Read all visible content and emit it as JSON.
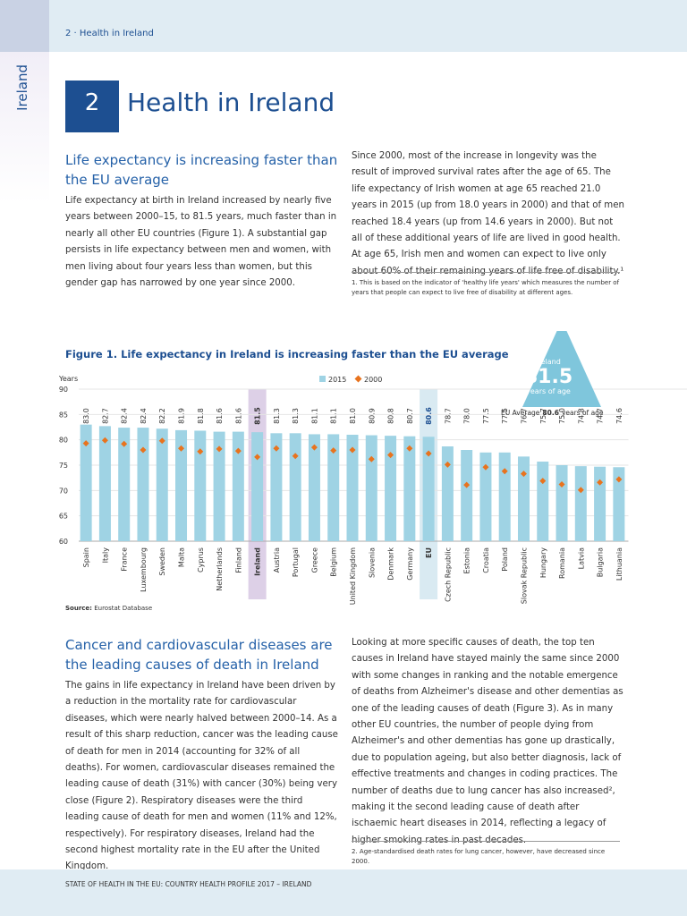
{
  "header": {
    "section": "2 · Health in Ireland"
  },
  "side_tab": "Ireland",
  "chapter": {
    "number": "2",
    "title": "Health in Ireland"
  },
  "section1": {
    "heading": "Life expectancy is increasing faster than the EU average",
    "left_paragraph": "Life expectancy at birth in Ireland increased by nearly five years between 2000–15, to 81.5 years, much faster than in nearly all other EU countries (Figure 1). A substantial gap persists in life expectancy between men and women, with men living about four years less than women, but this gender gap has narrowed by one year since 2000.",
    "right_paragraph": "Since 2000, most of the increase in longevity was the result of improved survival rates after the age of 65. The life expectancy of Irish women at age 65 reached 21.0 years in 2015 (up from 18.0 years in 2000) and that of men reached 18.4 years (up from 14.6 years in 2000). But not all of these additional years of life are lived in good health. At age 65, Irish men and women can expect to live only about 60% of their remaining years of life free of disability.¹",
    "footnote": "1. This is based on the indicator of 'healthy life years' which measures the number of years that people can expect to live free of disability at different ages."
  },
  "chart_data": {
    "type": "bar",
    "title": "Figure 1. Life expectancy in Ireland is increasing faster than the EU average",
    "y_label": "Years",
    "categories": [
      "Spain",
      "Italy",
      "France",
      "Luxembourg",
      "Sweden",
      "Malta",
      "Cyprus",
      "Netherlands",
      "Finland",
      "Ireland",
      "Austria",
      "Portugal",
      "Greece",
      "Belgium",
      "United Kingdom",
      "Slovenia",
      "Denmark",
      "Germany",
      "EU",
      "Czech Republic",
      "Estonia",
      "Croatia",
      "Poland",
      "Slovak Republic",
      "Hungary",
      "Romania",
      "Latvia",
      "Bulgaria",
      "Lithuania"
    ],
    "series": [
      {
        "name": "2015",
        "marker": "bar",
        "color": "#9fd3e4",
        "values": [
          83.0,
          82.7,
          82.4,
          82.4,
          82.2,
          81.9,
          81.8,
          81.6,
          81.6,
          81.5,
          81.3,
          81.3,
          81.1,
          81.1,
          81.0,
          80.9,
          80.8,
          80.7,
          80.6,
          78.7,
          78.0,
          77.5,
          77.5,
          76.7,
          75.7,
          75.0,
          74.8,
          74.7,
          74.6
        ],
        "value_labels": [
          "83.0",
          "82.7",
          "82.4",
          "82.4",
          "82.2",
          "81.9",
          "81.8",
          "81.6",
          "81.6",
          "81.5",
          "81.3",
          "81.3",
          "81.1",
          "81.1",
          "81.0",
          "80.9",
          "80.8",
          "80.7",
          "80.6",
          "78.7",
          "78.0",
          "77.5",
          "77.5",
          "76.7",
          "75.7",
          "75.0",
          "74.8",
          "74.7",
          "74.6"
        ]
      },
      {
        "name": "2000",
        "marker": "diamond",
        "color": "#e8731e",
        "values": [
          79.3,
          79.9,
          79.2,
          78.0,
          79.8,
          78.3,
          77.7,
          78.2,
          77.8,
          76.6,
          78.3,
          76.8,
          78.5,
          77.9,
          78.0,
          76.2,
          77.0,
          78.3,
          77.3,
          75.1,
          71.1,
          74.6,
          73.8,
          73.3,
          71.9,
          71.2,
          70.1,
          71.6,
          72.2
        ]
      }
    ],
    "ylim": [
      60,
      90
    ],
    "yticks": [
      60,
      65,
      70,
      75,
      80,
      85,
      90
    ],
    "grid": true,
    "highlights": [
      {
        "category": "Ireland",
        "color": "#ddd0e7"
      },
      {
        "category": "EU",
        "color": "#d9eaf2"
      }
    ],
    "annotations": {
      "ireland": {
        "label": "Ireland",
        "value": 81.5,
        "unit": "years of age",
        "color": "#7fc6dc"
      },
      "eu_average": {
        "label": "EU Average",
        "value": 80.6,
        "unit": "years of age"
      }
    }
  },
  "figure_source": {
    "label": "Source:",
    "text": "Eurostat Database"
  },
  "section2": {
    "heading": "Cancer and cardiovascular diseases are the leading causes of death in Ireland",
    "left_paragraph": "The gains in life expectancy in Ireland have been driven by a reduction in the mortality rate for cardiovascular diseases, which were nearly halved between 2000–14. As a result of this sharp reduction, cancer was the leading cause of death for men in 2014 (accounting for 32% of all deaths). For women, cardiovascular diseases remained the leading cause of death (31%) with cancer (30%) being very close (Figure 2). Respiratory diseases were the third leading cause of death for men and women (11% and 12%, respectively). For respiratory diseases, Ireland had the second highest mortality rate in the EU after the United Kingdom.",
    "right_paragraph": "Looking at more specific causes of death, the top ten causes in Ireland have stayed mainly the same since 2000 with some changes in ranking and the notable emergence of deaths from Alzheimer's disease and other dementias as one of the leading causes of death (Figure 3). As in many other EU countries, the number of people dying from Alzheimer's and other dementias has gone up drastically, due to population ageing, but also better diagnosis, lack of effective treatments and changes in coding practices. The number of deaths due to lung cancer has also increased², making it the second leading cause of death after ischaemic heart diseases in 2014, reflecting a legacy of higher smoking rates in past decades.",
    "footnote": "2. Age-standardised death rates for lung cancer, however, have decreased since 2000."
  },
  "footer": "STATE OF HEALTH IN THE EU: COUNTRY HEALTH PROFILE 2017 – IRELAND"
}
